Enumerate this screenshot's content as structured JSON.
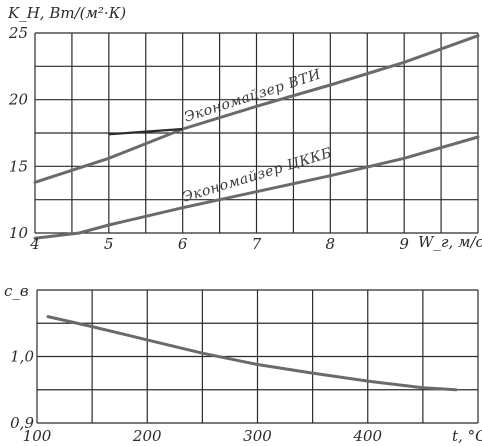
{
  "chart_data": [
    {
      "type": "line",
      "ylabel": "K_H, Вт/(м²·К)",
      "xlabel": "W_г, м/с",
      "xlim": [
        4,
        10
      ],
      "ylim": [
        10,
        25
      ],
      "x_ticks": [
        "4",
        "5",
        "6",
        "7",
        "8",
        "9"
      ],
      "y_ticks": [
        "10",
        "15",
        "20",
        "25"
      ],
      "grid": true,
      "series": [
        {
          "name": "Экономайзер ВТИ",
          "x": [
            4.0,
            5.0,
            6.0,
            7.0,
            8.0,
            9.0,
            10.0
          ],
          "y": [
            13.8,
            15.6,
            17.8,
            19.5,
            21.1,
            22.8,
            24.8
          ]
        },
        {
          "name": "Экономайзер ЦККБ",
          "x": [
            4.0,
            4.6,
            5.0,
            6.0,
            7.0,
            8.0,
            9.0,
            10.0
          ],
          "y": [
            9.6,
            10.0,
            10.6,
            11.9,
            13.1,
            14.3,
            15.6,
            17.2
          ]
        }
      ],
      "annotations": [
        {
          "type": "arrow",
          "from": [
            5.0,
            17.4
          ],
          "to": [
            6.0,
            17.8
          ]
        }
      ]
    },
    {
      "type": "line",
      "ylabel": "c_в",
      "xlabel": "t, °C",
      "xlim": [
        100,
        500
      ],
      "ylim": [
        0.9,
        1.1
      ],
      "x_ticks": [
        "100",
        "200",
        "300",
        "400"
      ],
      "y_ticks": [
        "0,9",
        "1,0"
      ],
      "grid": true,
      "series": [
        {
          "x": [
            110,
            150,
            200,
            250,
            300,
            350,
            400,
            450,
            480
          ],
          "y": [
            1.06,
            1.045,
            1.025,
            1.005,
            0.988,
            0.975,
            0.963,
            0.953,
            0.95
          ]
        }
      ]
    }
  ]
}
